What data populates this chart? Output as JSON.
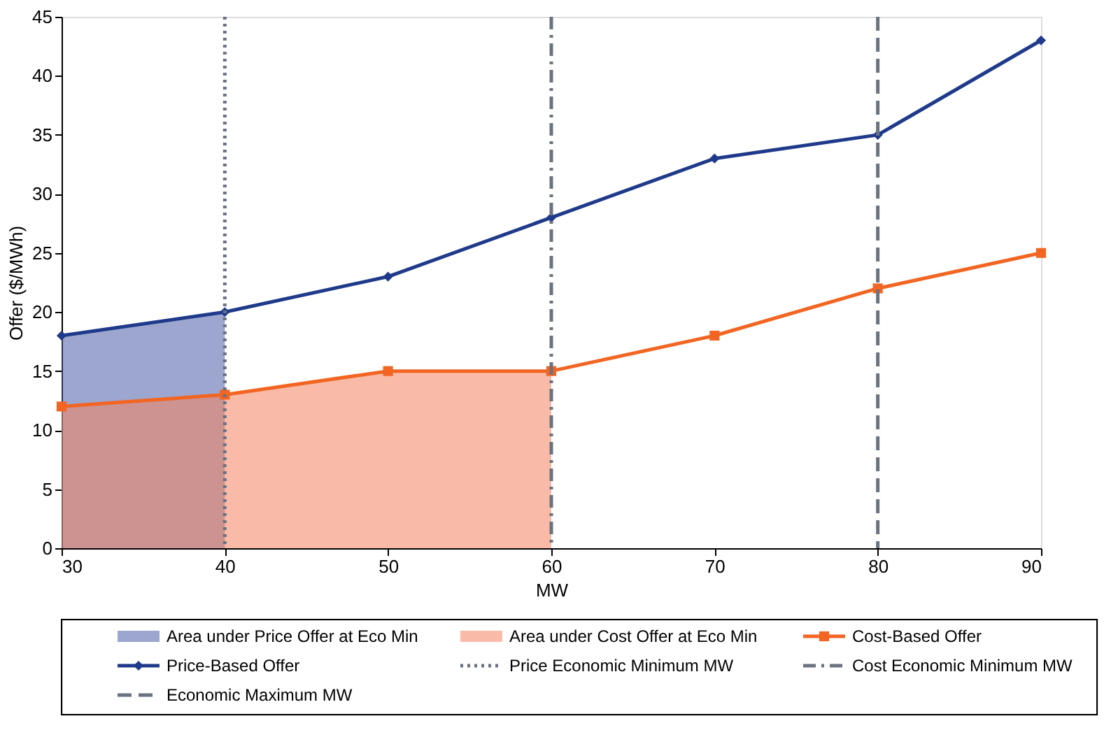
{
  "chart_data": {
    "type": "line",
    "ylabel": "Offer ($/MWh)",
    "xlabel": "MW",
    "xlim": [
      30,
      90
    ],
    "xticks": [
      30,
      40,
      50,
      60,
      70,
      80,
      90
    ],
    "ylim": [
      0,
      45
    ],
    "yticks": [
      0,
      5,
      10,
      15,
      20,
      25,
      30,
      35,
      40,
      45
    ],
    "series": [
      {
        "name": "Area under Price Offer at Eco Min",
        "type": "area",
        "color": "#4a5ca8",
        "x": [
          30,
          40
        ],
        "values": [
          18,
          20
        ]
      },
      {
        "name": "Area under Cost Offer at Eco Min",
        "type": "area",
        "color": "#f4845f",
        "x": [
          30,
          40,
          50,
          60
        ],
        "values": [
          12,
          13,
          15,
          15
        ]
      },
      {
        "name": "Cost-Based Offer",
        "color": "#f26522",
        "marker": "square",
        "x": [
          30,
          40,
          50,
          60,
          70,
          80,
          90
        ],
        "values": [
          12,
          13,
          15,
          15,
          18,
          22,
          25
        ]
      },
      {
        "name": "Price-Based Offer",
        "color": "#1f3a8a",
        "marker": "diamond",
        "x": [
          30,
          40,
          50,
          60,
          70,
          80,
          90
        ],
        "values": [
          18,
          20,
          23,
          28,
          33,
          35,
          43
        ]
      }
    ],
    "ref_lines": [
      {
        "axis": "x",
        "value": 40,
        "label": "Price Economic Minimum MW",
        "color": "#6b7280",
        "line_style": "dotted"
      },
      {
        "axis": "x",
        "value": 60,
        "label": "Cost Economic Minimum MW",
        "color": "#6b7280",
        "line_style": "dashdot"
      },
      {
        "axis": "x",
        "value": 80,
        "label": "Economic Maximum MW",
        "color": "#6b7280",
        "line_style": "dashed"
      }
    ],
    "grid": false,
    "legend": "bottom"
  }
}
